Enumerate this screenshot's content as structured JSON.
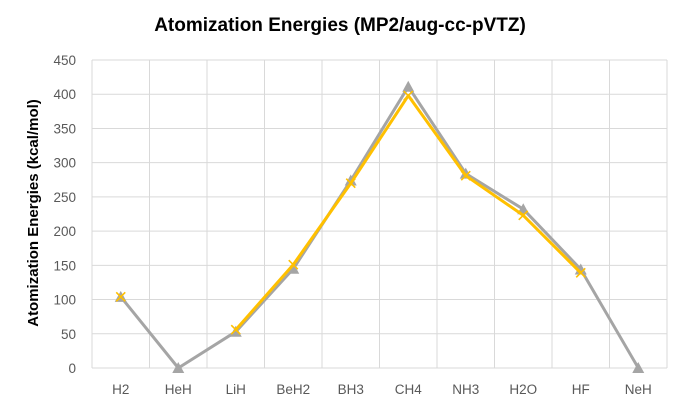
{
  "chart_data": {
    "type": "line",
    "title": "Atomization Energies  (MP2/aug-cc-pVTZ)",
    "xlabel": "",
    "ylabel": "Atomization Energies (kcal/mol)",
    "ylim": [
      0,
      450
    ],
    "yticks": [
      0,
      50,
      100,
      150,
      200,
      250,
      300,
      350,
      400,
      450
    ],
    "categories": [
      "H2",
      "HeH",
      "LiH",
      "BeH2",
      "BH3",
      "CH4",
      "NH3",
      "H2O",
      "HF",
      "NeH"
    ],
    "grid": true,
    "legend": "none",
    "series": [
      {
        "color": "#a5a5a5",
        "marker": "triangle",
        "values": [
          104,
          0,
          53,
          145,
          274,
          411,
          284,
          232,
          144,
          0
        ]
      },
      {
        "color": "#ffc000",
        "marker": "x",
        "values": [
          104,
          null,
          56,
          151,
          270,
          398,
          281,
          223,
          139,
          null
        ]
      }
    ]
  }
}
